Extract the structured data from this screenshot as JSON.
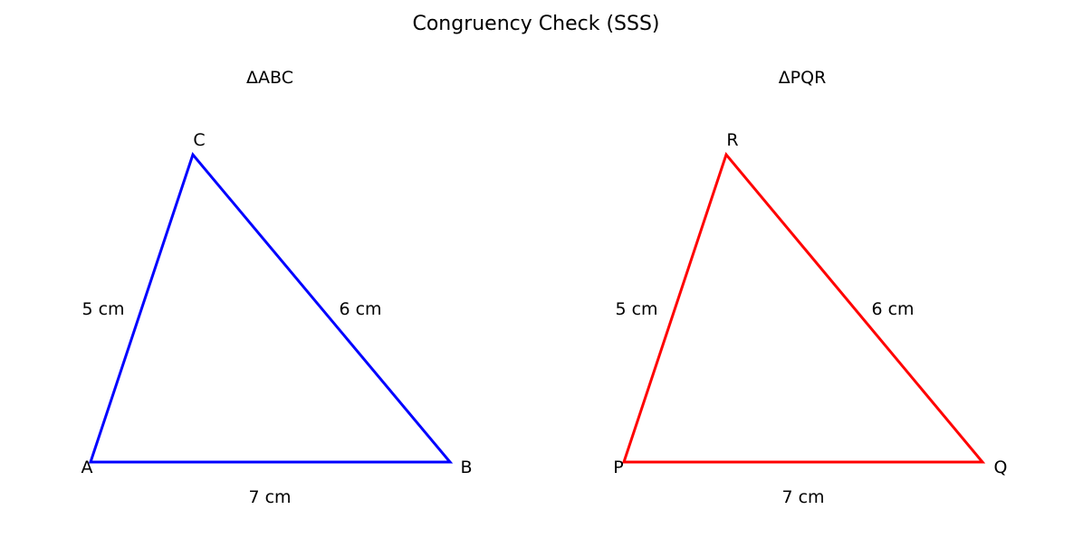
{
  "title": "Congruency Check (SSS)",
  "triangles": [
    {
      "name": "ΔABC",
      "color": "#0000ff",
      "vertices": {
        "a": "A",
        "b": "B",
        "c": "C"
      },
      "sides": {
        "ac": "5 cm",
        "bc": "6 cm",
        "ab": "7 cm"
      }
    },
    {
      "name": "ΔPQR",
      "color": "#ff0000",
      "vertices": {
        "a": "P",
        "b": "Q",
        "c": "R"
      },
      "sides": {
        "ac": "5 cm",
        "bc": "6 cm",
        "ab": "7 cm"
      }
    }
  ]
}
